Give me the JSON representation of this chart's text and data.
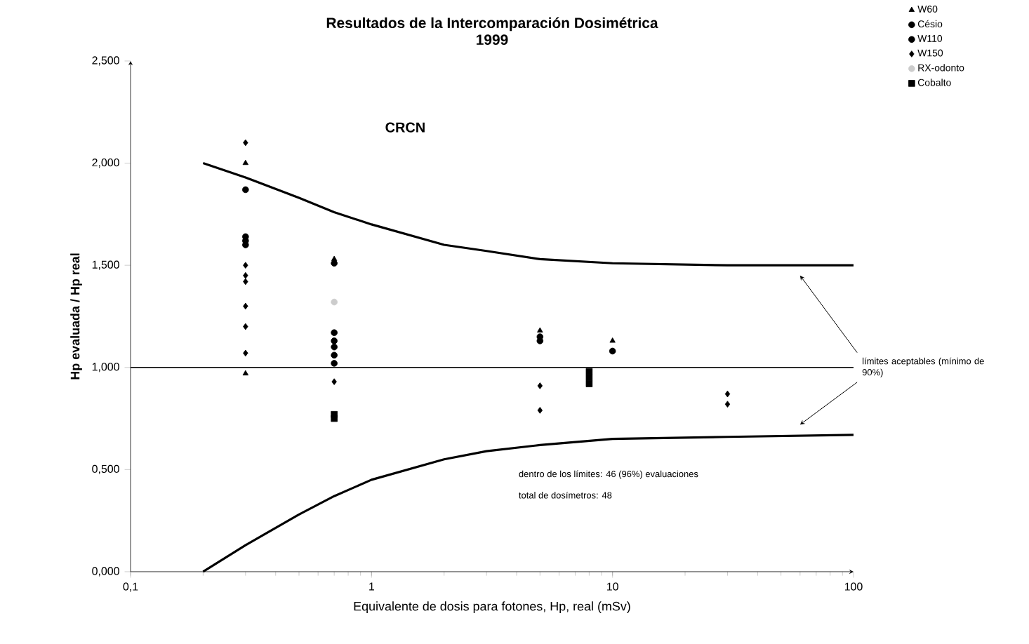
{
  "chart_data": {
    "type": "scatter",
    "title": "Resultados de la Intercomparación Dosimétrica",
    "subtitle": "1999",
    "xlabel": "Equivalente de dosis para fotones, Hp, real (mSv)",
    "ylabel": "Hp evaluada / Hp real",
    "log": "x",
    "xlim": [
      0.1,
      100
    ],
    "ylim": [
      0,
      2.5
    ],
    "xticks": [
      {
        "value": 0.1,
        "label": "0,1"
      },
      1,
      10,
      100
    ],
    "yticks": [
      {
        "value": 0,
        "label": "0,000"
      },
      {
        "value": 0.5,
        "label": "0,500"
      },
      {
        "value": 1,
        "label": "1,000"
      },
      {
        "value": 1.5,
        "label": "1,500"
      },
      {
        "value": 2,
        "label": "2,000"
      },
      {
        "value": 2.5,
        "label": "2,500"
      }
    ],
    "legend": "top right",
    "grid": false,
    "series": [
      {
        "name": "W60",
        "color": "#000000",
        "marker": "triangle",
        "x": [
          0.3,
          0.3,
          0.7,
          5,
          10
        ],
        "values": [
          2.0,
          0.97,
          1.53,
          1.18,
          1.13
        ]
      },
      {
        "name": "Césio",
        "color": "#000000",
        "marker": "circle",
        "x": [
          0.7,
          0.7,
          0.7,
          0.7,
          0.7,
          0.7,
          5,
          5
        ],
        "values": [
          1.51,
          1.17,
          1.13,
          1.1,
          1.06,
          1.02,
          1.15,
          1.13
        ]
      },
      {
        "name": "W110",
        "color": "#000000",
        "marker": "circle",
        "x": [
          0.3,
          0.3,
          0.3,
          0.3,
          10
        ],
        "values": [
          1.87,
          1.64,
          1.62,
          1.6,
          1.08
        ]
      },
      {
        "name": "W150",
        "color": "#000000",
        "marker": "diamond",
        "x": [
          0.3,
          0.3,
          0.3,
          0.3,
          0.3,
          0.3,
          0.3,
          0.7,
          5,
          5,
          30,
          30
        ],
        "values": [
          2.1,
          1.5,
          1.45,
          1.42,
          1.3,
          1.2,
          1.07,
          0.93,
          0.91,
          0.79,
          0.87,
          0.82
        ]
      },
      {
        "name": "RX-odonto",
        "color": "#cccccc",
        "marker": "circle",
        "x": [
          0.7
        ],
        "values": [
          1.32
        ]
      },
      {
        "name": "Cobalto",
        "color": "#000000",
        "marker": "square",
        "x": [
          0.7,
          0.7,
          8,
          8,
          8
        ],
        "values": [
          0.77,
          0.75,
          0.98,
          0.95,
          0.92
        ]
      },
      {
        "type": "line",
        "color": "#000000",
        "marker": "none",
        "x": [
          0.2,
          0.3,
          0.5,
          0.7,
          1,
          2,
          3,
          5,
          10,
          30,
          100
        ],
        "values": [
          2.0,
          1.93,
          1.83,
          1.76,
          1.7,
          1.6,
          1.57,
          1.53,
          1.51,
          1.5,
          1.5
        ]
      },
      {
        "type": "line",
        "color": "#000000",
        "marker": "none",
        "x": [
          0.2,
          0.3,
          0.5,
          0.7,
          1,
          2,
          3,
          5,
          10,
          30,
          100
        ],
        "values": [
          0,
          0.13,
          0.28,
          0.37,
          0.45,
          0.55,
          0.59,
          0.62,
          0.65,
          0.66,
          0.67
        ]
      }
    ],
    "ref_lines": [
      {
        "axis": "y",
        "value": 1,
        "color": "#000000"
      }
    ],
    "annotations": [
      "CRCN",
      "límites aceptables (mínimo de 90%)",
      "dentro de los límites: 46  (96%) evaluaciones",
      "total de dosímetros: 48"
    ]
  }
}
